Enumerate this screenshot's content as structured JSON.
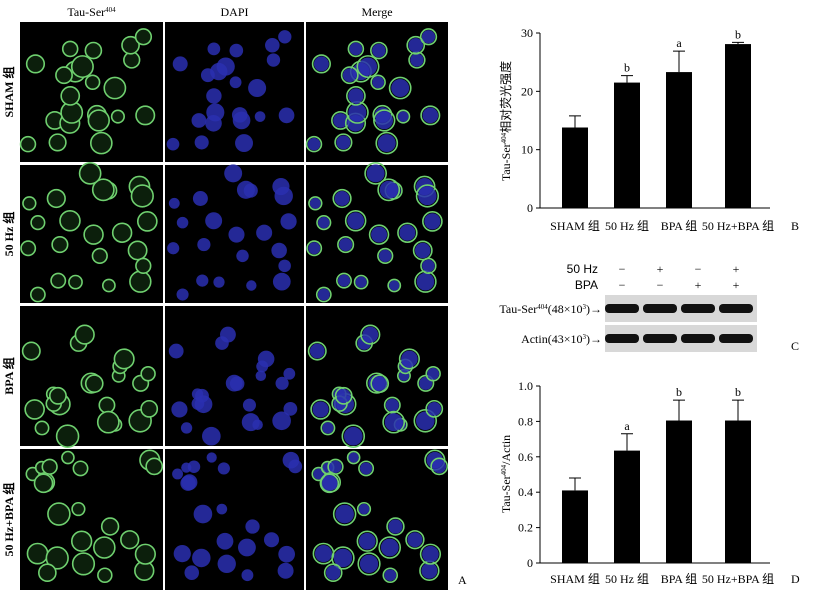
{
  "panel_a": {
    "label": "A",
    "column_headers": [
      {
        "text": "Tau-Ser",
        "sup": "404"
      },
      {
        "text": "DAPI",
        "sup": null
      },
      {
        "text": "Merge",
        "sup": null
      }
    ],
    "row_labels": [
      "SHAM 组",
      "50 Hz 组",
      "BPA 组",
      "50 Hz+BPA 组"
    ]
  },
  "panel_c": {
    "label": "C",
    "conditions": [
      {
        "name": "50 Hz",
        "signs": [
          "−",
          "+",
          "−",
          "+"
        ]
      },
      {
        "name": "BPA",
        "signs": [
          "−",
          "−",
          "+",
          "+"
        ]
      }
    ],
    "bands": [
      {
        "name": "Tau-Ser",
        "sup": "404",
        "size": "(48×10",
        "size_sup": "3",
        "end": ")→"
      },
      {
        "name": "Actin",
        "sup": null,
        "size": "(43×10",
        "size_sup": "3",
        "end": ")→"
      }
    ]
  },
  "chart_data": [
    {
      "type": "bar",
      "panel": "B",
      "ylabel": {
        "text": "Tau-Ser",
        "sup": "404",
        "after": "相对荧光强度"
      },
      "categories": [
        "SHAM 组",
        "50 Hz 组",
        "BPA 组",
        "50 Hz+BPA 组"
      ],
      "values": [
        13.8,
        21.5,
        23.3,
        28.1
      ],
      "errors": [
        2.0,
        1.2,
        3.6,
        0.3
      ],
      "sig_labels": [
        null,
        "b",
        "a",
        "b"
      ],
      "color": "#000000",
      "ylim": [
        0,
        30
      ],
      "yticks": [
        0,
        10,
        20,
        30
      ]
    },
    {
      "type": "bar",
      "panel": "D",
      "ylabel": {
        "text": "Tau-Ser",
        "sup": "404",
        "after": "/Actin"
      },
      "categories": [
        "SHAM 组",
        "50 Hz 组",
        "BPA 组",
        "50 Hz+BPA 组"
      ],
      "values": [
        0.41,
        0.635,
        0.805,
        0.805
      ],
      "errors": [
        0.07,
        0.095,
        0.115,
        0.115
      ],
      "sig_labels": [
        null,
        "a",
        "b",
        "b"
      ],
      "color": "#000000",
      "ylim": [
        0,
        1
      ],
      "yticks": [
        0,
        0.2,
        0.4,
        0.6,
        0.8,
        {
          "value": 1,
          "label": "1.0"
        }
      ]
    }
  ]
}
